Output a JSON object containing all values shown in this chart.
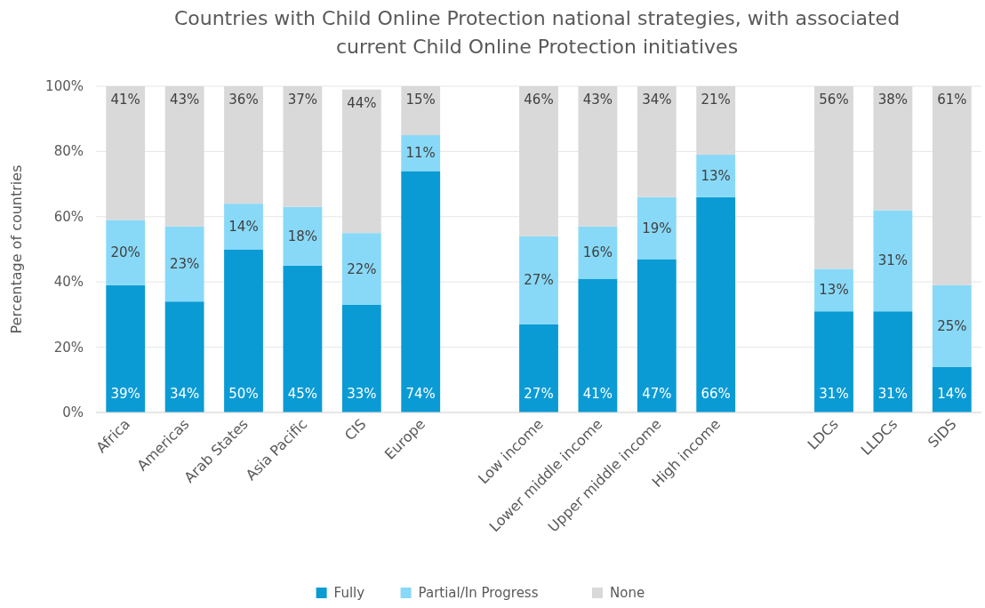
{
  "chart_data": {
    "type": "bar",
    "stacked": true,
    "title": "Countries with Child Online Protection national strategies, with associated current Child Online Protection initiatives",
    "ylabel": "Percentage of countries",
    "categories": [
      "Africa",
      "Americas",
      "Arab States",
      "Asia Pacific",
      "CIS",
      "Europe",
      null,
      "Low income",
      "Lower middle income",
      "Upper middle income",
      "High income",
      null,
      "LDCs",
      "LLDCs",
      "SIDS"
    ],
    "series": [
      {
        "name": "Fully",
        "color": "#0a9bd5",
        "values": [
          39,
          34,
          50,
          45,
          33,
          74,
          null,
          27,
          41,
          47,
          66,
          null,
          31,
          31,
          14
        ],
        "value_labels": [
          "39%",
          "34%",
          "50%",
          "45%",
          "33%",
          "74%",
          null,
          "27%",
          "41%",
          "47%",
          "66%",
          null,
          "31%",
          "31%",
          "14%"
        ]
      },
      {
        "name": "Partial/In Progress",
        "color": "#88d9f7",
        "values": [
          20,
          23,
          14,
          18,
          22,
          11,
          null,
          27,
          16,
          19,
          13,
          null,
          13,
          31,
          25
        ],
        "value_labels": [
          "20%",
          "23%",
          "14%",
          "18%",
          "22%",
          "11%",
          null,
          "27%",
          "16%",
          "19%",
          "13%",
          null,
          "13%",
          "31%",
          "25%"
        ]
      },
      {
        "name": "None",
        "color": "#d9d9d9",
        "values": [
          41,
          43,
          36,
          37,
          44,
          15,
          null,
          46,
          43,
          34,
          21,
          null,
          56,
          38,
          61
        ],
        "value_labels": [
          "41%",
          "43%",
          "36%",
          "37%",
          "44%",
          "15%",
          null,
          "46%",
          "43%",
          "34%",
          "21%",
          null,
          "56%",
          "38%",
          "61%"
        ]
      }
    ],
    "ylim": [
      0,
      100
    ],
    "yticks": [
      {
        "value": 0,
        "label": "0%"
      },
      {
        "value": 20,
        "label": "20%"
      },
      {
        "value": 40,
        "label": "40%"
      },
      {
        "value": 60,
        "label": "60%"
      },
      {
        "value": 80,
        "label": "80%"
      },
      {
        "value": 100,
        "label": "100%"
      }
    ],
    "grid": "y",
    "legend": "bottom"
  }
}
